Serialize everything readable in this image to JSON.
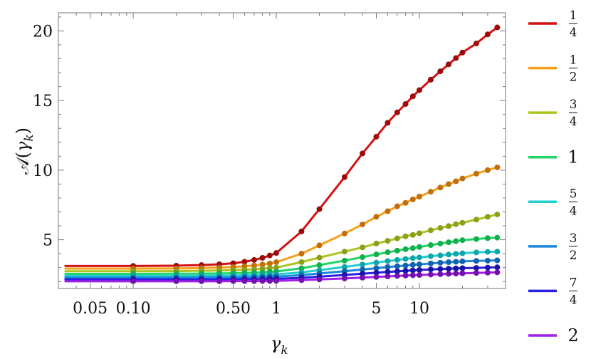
{
  "chart_data": {
    "type": "line",
    "xlabel_main": "γ",
    "xlabel_sub": "k",
    "ylabel_parts": [
      "𝒜(",
      "γ",
      "k",
      ")"
    ],
    "x_scale": "log",
    "xlim": [
      0.03,
      40
    ],
    "ylim": [
      1.5,
      21.3
    ],
    "x_ticks": [
      {
        "value": 0.05,
        "label": "0.05"
      },
      {
        "value": 0.1,
        "label": "0.10"
      },
      {
        "value": 0.5,
        "label": "0.50"
      },
      {
        "value": 1,
        "label": "1"
      },
      {
        "value": 5,
        "label": "5"
      },
      {
        "value": 10,
        "label": "10"
      }
    ],
    "y_ticks": [
      {
        "value": 5,
        "label": "5"
      },
      {
        "value": 10,
        "label": "10"
      },
      {
        "value": 15,
        "label": "15"
      },
      {
        "value": 20,
        "label": "20"
      }
    ],
    "grid": false,
    "legend_position": "right",
    "x": [
      0.1,
      0.2,
      0.3,
      0.4,
      0.5,
      0.6,
      0.7,
      0.8,
      0.9,
      1.0,
      1.5,
      2,
      3,
      4,
      5,
      6,
      7,
      8,
      9,
      10,
      12,
      14,
      16,
      18,
      20,
      25,
      30,
      35
    ],
    "series": [
      {
        "name": "1/4",
        "num": "1",
        "den": "4",
        "color": "#d41010",
        "marker_color": "#9b0b0b",
        "values": [
          3.12,
          3.14,
          3.18,
          3.24,
          3.31,
          3.42,
          3.55,
          3.7,
          3.87,
          4.05,
          5.6,
          7.2,
          9.5,
          11.2,
          12.4,
          13.4,
          14.15,
          14.75,
          15.3,
          15.75,
          16.5,
          17.1,
          17.6,
          18.05,
          18.45,
          19.1,
          19.75,
          20.25
        ]
      },
      {
        "name": "1/2",
        "num": "1",
        "den": "2",
        "color": "#f6a019",
        "marker_color": "#c16f0c",
        "values": [
          2.93,
          2.94,
          2.97,
          3.0,
          3.04,
          3.09,
          3.15,
          3.22,
          3.3,
          3.39,
          4.0,
          4.6,
          5.45,
          6.1,
          6.65,
          7.05,
          7.4,
          7.65,
          7.9,
          8.1,
          8.45,
          8.75,
          9.0,
          9.2,
          9.4,
          9.75,
          10.0,
          10.2
        ]
      },
      {
        "name": "3/4",
        "num": "3",
        "den": "4",
        "color": "#aec41e",
        "marker_color": "#8ca01a",
        "values": [
          2.74,
          2.75,
          2.77,
          2.79,
          2.82,
          2.85,
          2.88,
          2.92,
          2.96,
          3.0,
          3.4,
          3.72,
          4.15,
          4.45,
          4.73,
          4.92,
          5.1,
          5.25,
          5.35,
          5.47,
          5.68,
          5.85,
          5.98,
          6.12,
          6.22,
          6.45,
          6.65,
          6.82
        ]
      },
      {
        "name": "1",
        "num": "1",
        "den": "",
        "color": "#22d466",
        "marker_color": "#12b04d",
        "values": [
          2.55,
          2.56,
          2.57,
          2.58,
          2.6,
          2.62,
          2.64,
          2.66,
          2.69,
          2.72,
          2.95,
          3.18,
          3.5,
          3.75,
          3.95,
          4.1,
          4.22,
          4.32,
          4.4,
          4.48,
          4.62,
          4.73,
          4.82,
          4.9,
          4.97,
          5.05,
          5.12,
          5.15
        ]
      },
      {
        "name": "5/4",
        "num": "5",
        "den": "4",
        "color": "#1fcfd0",
        "marker_color": "#14a5a9",
        "values": [
          2.4,
          2.4,
          2.41,
          2.42,
          2.43,
          2.45,
          2.46,
          2.48,
          2.49,
          2.51,
          2.66,
          2.82,
          3.05,
          3.22,
          3.36,
          3.47,
          3.55,
          3.62,
          3.68,
          3.73,
          3.82,
          3.88,
          3.94,
          3.99,
          4.03,
          4.09,
          4.13,
          4.15
        ]
      },
      {
        "name": "3/2",
        "num": "3",
        "den": "2",
        "color": "#1b86dc",
        "marker_color": "#1262ad",
        "values": [
          2.28,
          2.28,
          2.29,
          2.29,
          2.3,
          2.31,
          2.32,
          2.33,
          2.34,
          2.35,
          2.46,
          2.58,
          2.74,
          2.86,
          2.96,
          3.04,
          3.1,
          3.15,
          3.2,
          3.23,
          3.3,
          3.35,
          3.39,
          3.42,
          3.45,
          3.48,
          3.5,
          3.52
        ]
      },
      {
        "name": "7/4",
        "num": "7",
        "den": "4",
        "color": "#2a1ee0",
        "marker_color": "#1a14a6",
        "values": [
          2.15,
          2.15,
          2.15,
          2.16,
          2.16,
          2.17,
          2.17,
          2.18,
          2.19,
          2.2,
          2.27,
          2.35,
          2.47,
          2.56,
          2.63,
          2.69,
          2.73,
          2.77,
          2.8,
          2.83,
          2.87,
          2.9,
          2.92,
          2.94,
          2.96,
          2.98,
          3.0,
          3.02
        ]
      },
      {
        "name": "2",
        "num": "2",
        "den": "",
        "color": "#a21ee6",
        "marker_color": "#7410b2",
        "values": [
          2.02,
          2.02,
          2.02,
          2.02,
          2.03,
          2.03,
          2.03,
          2.04,
          2.04,
          2.05,
          2.1,
          2.15,
          2.22,
          2.28,
          2.33,
          2.37,
          2.4,
          2.43,
          2.45,
          2.47,
          2.5,
          2.53,
          2.55,
          2.57,
          2.59,
          2.62,
          2.64,
          2.66
        ]
      }
    ]
  }
}
